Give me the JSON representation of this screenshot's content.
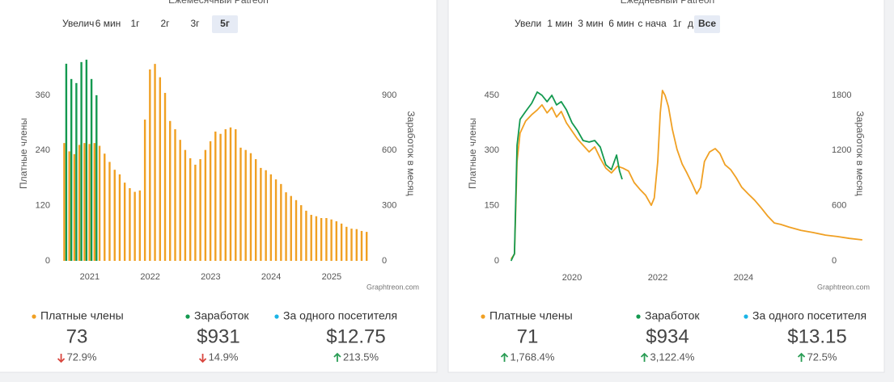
{
  "chart_data": [
    {
      "type": "bar",
      "title": "Ежемесячный Patreon",
      "ylabel": "Платные члены",
      "y2label": "Заработок в месяц",
      "credit": "Graphtreon.com",
      "x": [
        2020.583,
        2020.667,
        2020.75,
        2020.833,
        2020.917,
        2021,
        2021.083,
        2021.167,
        2021.25,
        2021.333,
        2021.417,
        2021.5,
        2021.583,
        2021.667,
        2021.75,
        2021.833,
        2021.917,
        2022,
        2022.083,
        2022.167,
        2022.25,
        2022.333,
        2022.417,
        2022.5,
        2022.583,
        2022.667,
        2022.75,
        2022.833,
        2022.917,
        2023,
        2023.083,
        2023.167,
        2023.25,
        2023.333,
        2023.417,
        2023.5,
        2023.583,
        2023.667,
        2023.75,
        2023.833,
        2023.917,
        2024,
        2024.083,
        2024.167,
        2024.25,
        2024.333,
        2024.417,
        2024.5,
        2024.583,
        2024.667,
        2024.75,
        2024.833,
        2024.917,
        2025,
        2025.083,
        2025.167,
        2025.25,
        2025.333,
        2025.417,
        2025.5,
        2025.583
      ],
      "series": [
        {
          "name": "Платные члены",
          "color": "#f0a023",
          "axis": "y",
          "values": [
            256,
            238,
            232,
            252,
            256,
            254,
            256,
            250,
            233,
            215,
            198,
            188,
            170,
            158,
            150,
            153,
            307,
            416,
            428,
            399,
            365,
            304,
            286,
            263,
            241,
            223,
            209,
            221,
            241,
            260,
            281,
            276,
            286,
            290,
            286,
            246,
            241,
            234,
            221,
            202,
            197,
            188,
            177,
            167,
            149,
            141,
            132,
            121,
            109,
            100,
            97,
            93,
            93,
            90,
            86,
            81,
            74,
            70,
            69,
            65,
            63
          ]
        },
        {
          "name": "Заработок",
          "color": "#13994f",
          "axis": "y2",
          "values": [
            1071,
            988,
            966,
            1080,
            1093,
            988,
            900,
            null,
            null,
            null,
            null,
            null,
            null,
            null,
            null,
            null,
            null,
            null,
            null,
            null,
            null,
            null,
            null,
            null,
            null,
            null,
            null,
            null,
            null,
            null,
            null,
            null,
            null,
            null,
            null,
            null,
            null,
            null,
            null,
            null,
            null,
            null,
            null,
            null,
            null,
            null,
            null,
            null,
            null,
            null,
            null,
            null,
            null,
            null,
            null,
            null,
            null,
            null,
            null,
            null,
            null
          ]
        }
      ],
      "xlim": [
        2020.48,
        2025.67
      ],
      "xticks": [
        2021,
        2022,
        2023,
        2024,
        2025
      ],
      "ylim": [
        0,
        430
      ],
      "yticks": [
        0,
        120,
        240,
        360
      ],
      "y2lim": [
        0,
        1075
      ],
      "y2ticks": [
        0,
        300,
        600,
        900
      ],
      "grid": false
    },
    {
      "type": "line",
      "title": "Ежедневный Patreon",
      "ylabel": "Платные члены",
      "y2label": "Заработок в месяц",
      "credit": "Graphtreon.com",
      "series": [
        {
          "name": "Платные члены",
          "color": "#f0a023",
          "axis": "y",
          "x": [
            2018.58,
            2018.66,
            2018.72,
            2018.79,
            2018.92,
            2019.06,
            2019.19,
            2019.3,
            2019.42,
            2019.53,
            2019.64,
            2019.75,
            2019.87,
            2020.0,
            2020.13,
            2020.26,
            2020.4,
            2020.53,
            2020.66,
            2020.79,
            2020.92,
            2021.06,
            2021.19,
            2021.32,
            2021.45,
            2021.58,
            2021.72,
            2021.85,
            2021.92,
            2022.0,
            2022.06,
            2022.11,
            2022.17,
            2022.25,
            2022.34,
            2022.45,
            2022.57,
            2022.68,
            2022.79,
            2022.91,
            2023.0,
            2023.09,
            2023.21,
            2023.34,
            2023.45,
            2023.57,
            2023.7,
            2023.83,
            2023.96,
            2024.11,
            2024.26,
            2024.42,
            2024.57,
            2024.72,
            2024.87,
            2025.06,
            2025.34,
            2025.62,
            2025.91,
            2026.19,
            2026.47,
            2026.77
          ],
          "values": [
            5,
            18,
            270,
            347,
            380,
            397,
            410,
            424,
            402,
            417,
            391,
            406,
            375,
            353,
            331,
            314,
            296,
            310,
            279,
            252,
            239,
            257,
            252,
            244,
            213,
            195,
            178,
            151,
            171,
            270,
            402,
            463,
            450,
            419,
            358,
            303,
            263,
            239,
            213,
            182,
            200,
            270,
            296,
            305,
            292,
            261,
            248,
            226,
            200,
            182,
            165,
            143,
            121,
            103,
            99,
            92,
            83,
            77,
            70,
            66,
            61,
            57
          ]
        },
        {
          "name": "Заработок",
          "color": "#13994f",
          "axis": "y2",
          "x": [
            2018.58,
            2018.66,
            2018.72,
            2018.79,
            2018.92,
            2019.06,
            2019.19,
            2019.3,
            2019.42,
            2019.53,
            2019.64,
            2019.75,
            2019.87,
            2020.0,
            2020.13,
            2020.26,
            2020.4,
            2020.53,
            2020.66,
            2020.79,
            2020.92,
            2021.04,
            2021.11,
            2021.17
          ],
          "values": [
            0,
            79,
            1256,
            1537,
            1624,
            1712,
            1835,
            1800,
            1730,
            1800,
            1695,
            1730,
            1642,
            1501,
            1414,
            1308,
            1291,
            1308,
            1238,
            1045,
            992,
            1150,
            975,
            887
          ]
        }
      ],
      "xlim": [
        2018.51,
        2026.85
      ],
      "xticks": [
        2020,
        2022,
        2024
      ],
      "ylim": [
        0,
        480
      ],
      "yticks": [
        0,
        150,
        300,
        450
      ],
      "y2lim": [
        0,
        1920
      ],
      "y2ticks": [
        0,
        600,
        1200,
        1800
      ],
      "grid": false
    }
  ],
  "panels": [
    {
      "zoom_label": "Увелич",
      "buttons": [
        "6 мин",
        "1г",
        "2г",
        "3г",
        "5г"
      ],
      "active": 4,
      "per_visitor": {
        "name": "За одного посетителя",
        "color": "#1ab4e6"
      },
      "stats": [
        {
          "value": "73",
          "change": "72.9%",
          "direction": "down"
        },
        {
          "value": "$931",
          "change": "14.9%",
          "direction": "down"
        },
        {
          "value": "$12.75",
          "change": "213.5%",
          "direction": "up"
        }
      ]
    },
    {
      "zoom_label": "Увели",
      "buttons": [
        "1 мин",
        "3 мин",
        "6 мин",
        "с нача",
        "1г",
        "д",
        "Все"
      ],
      "active": 6,
      "per_visitor": {
        "name": "За одного посетителя",
        "color": "#1ab4e6"
      },
      "stats": [
        {
          "value": "71",
          "change": "1,768.4%",
          "direction": "up"
        },
        {
          "value": "$934",
          "change": "3,122.4%",
          "direction": "up"
        },
        {
          "value": "$13.15",
          "change": "72.5%",
          "direction": "up"
        }
      ]
    }
  ]
}
